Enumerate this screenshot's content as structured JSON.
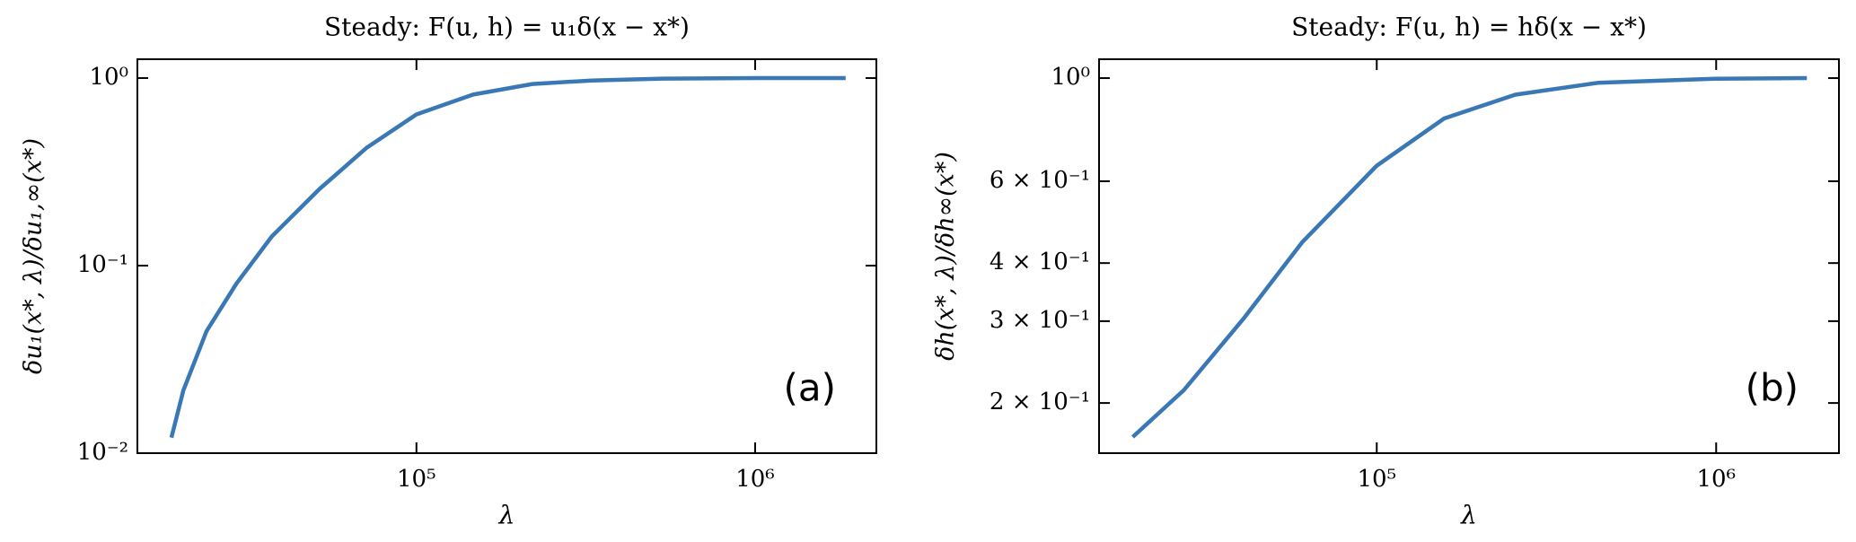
{
  "chart_data": [
    {
      "type": "line",
      "title": "Steady:  F(u, h) = u₁δ(x − x*)",
      "xlabel": "λ",
      "ylabel": "δu₁(x*, λ)/δu₁,∞(x*)",
      "annotation": "(a)",
      "xscale": "log",
      "yscale": "log",
      "color": "#3a78b5",
      "x": [
        18900,
        20500,
        24000,
        29400,
        37400,
        51600,
        71300,
        100000,
        147000,
        220000,
        329000,
        533000,
        1000000,
        1850000
      ],
      "values": [
        0.0121,
        0.0216,
        0.0447,
        0.08,
        0.143,
        0.255,
        0.425,
        0.64,
        0.816,
        0.93,
        0.97,
        0.993,
        1.0,
        1.0
      ],
      "xlim": [
        15000,
        2280000
      ],
      "ylim": [
        0.01,
        1.26
      ],
      "xticks": [
        {
          "value": 100000,
          "label": "10⁵"
        },
        {
          "value": 1000000,
          "label": "10⁶"
        }
      ],
      "yticks": [
        {
          "value": 0.01,
          "label": "10⁻²"
        },
        {
          "value": 0.1,
          "label": "10⁻¹"
        },
        {
          "value": 1,
          "label": "10⁰"
        }
      ]
    },
    {
      "type": "line",
      "title": "Steady:  F(u, h) = hδ(x − x*)",
      "xlabel": "λ",
      "ylabel": "δh(x*, λ)/δh∞(x*)",
      "annotation": "(b)",
      "xscale": "log",
      "yscale": "log",
      "color": "#3a78b5",
      "x": [
        19100,
        27000,
        40400,
        60200,
        100000,
        158000,
        256000,
        449000,
        1000000,
        1850000
      ],
      "values": [
        0.169,
        0.213,
        0.303,
        0.443,
        0.648,
        0.819,
        0.921,
        0.977,
        0.997,
        1.0
      ],
      "xlim": [
        15200,
        2300000
      ],
      "ylim": [
        0.156,
        1.098
      ],
      "xticks": [
        {
          "value": 100000,
          "label": "10⁵"
        },
        {
          "value": 1000000,
          "label": "10⁶"
        }
      ],
      "yticks": [
        {
          "value": 0.2,
          "label": "2 × 10⁻¹"
        },
        {
          "value": 0.3,
          "label": "3 × 10⁻¹"
        },
        {
          "value": 0.4,
          "label": "4 × 10⁻¹"
        },
        {
          "value": 0.6,
          "label": "6 × 10⁻¹"
        },
        {
          "value": 1,
          "label": "10⁰"
        }
      ]
    }
  ]
}
